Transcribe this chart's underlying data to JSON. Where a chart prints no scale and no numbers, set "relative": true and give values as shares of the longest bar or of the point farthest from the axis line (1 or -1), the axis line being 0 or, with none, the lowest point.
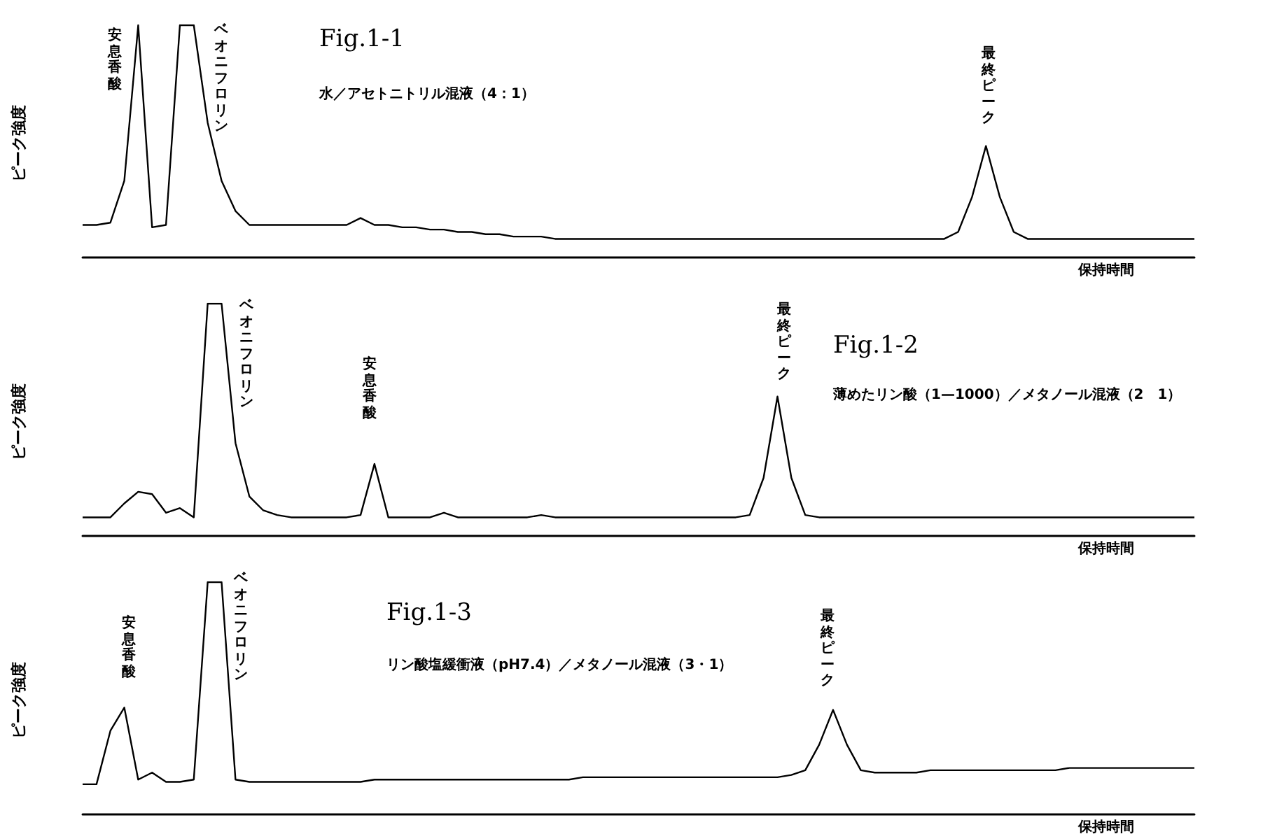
{
  "chart_data": [
    {
      "type": "line",
      "title": "Fig.1-1",
      "subtitle": "水／アセトニトリル混液（4：1）",
      "xlabel": "保持時間",
      "ylabel": "ピーク強度",
      "relative": true,
      "annotations": [
        "安息香酸",
        "ベオニフロリン",
        "最終ピーク"
      ],
      "categories": [
        null,
        null,
        null,
        null,
        null,
        null,
        null,
        null,
        null,
        null,
        null,
        null,
        null,
        null,
        null,
        null,
        null,
        null,
        null,
        null,
        null,
        null,
        null,
        null,
        null,
        null,
        null,
        null,
        null,
        null,
        null,
        null,
        null,
        null,
        null,
        null,
        null,
        null,
        null,
        null,
        null,
        null,
        null,
        null,
        null,
        null,
        null,
        null,
        null,
        null,
        null,
        null,
        null,
        null,
        null,
        null,
        null,
        null,
        null,
        null,
        null,
        null,
        null,
        null,
        null,
        null,
        null,
        null,
        null,
        null,
        null,
        null,
        null,
        null,
        null,
        null,
        null,
        null,
        null,
        null,
        null
      ],
      "series": [
        {
          "color": "#000000",
          "values": [
            0.14,
            0.14,
            0.15,
            0.33,
            1,
            0.13,
            0.14,
            1,
            1,
            0.58,
            0.33,
            0.2,
            0.14,
            0.14,
            0.14,
            0.14,
            0.14,
            0.14,
            0.14,
            0.14,
            0.17,
            0.14,
            0.14,
            0.13,
            0.13,
            0.12,
            0.12,
            0.11,
            0.11,
            0.1,
            0.1,
            0.09,
            0.09,
            0.09,
            0.08,
            0.08,
            0.08,
            0.08,
            0.08,
            0.08,
            0.08,
            0.08,
            0.08,
            0.08,
            0.08,
            0.08,
            0.08,
            0.08,
            0.08,
            0.08,
            0.08,
            0.08,
            0.08,
            0.08,
            0.08,
            0.08,
            0.08,
            0.08,
            0.08,
            0.08,
            0.08,
            0.08,
            0.08,
            0.11,
            0.26,
            0.48,
            0.26,
            0.11,
            0.08,
            0.08,
            0.08,
            0.08,
            0.08,
            0.08,
            0.08,
            0.08,
            0.08,
            0.08,
            0.08,
            0.08,
            0.08
          ]
        }
      ]
    },
    {
      "type": "line",
      "title": "Fig.1-2",
      "subtitle": "薄めたリン酸（1—1000）／メタノール混液（2　1）",
      "xlabel": "保持時間",
      "ylabel": "ピーク強度",
      "relative": true,
      "annotations": [
        "ベオニフロリン",
        "安息香酸",
        "最終ピーク"
      ],
      "categories": [
        null,
        null,
        null,
        null,
        null,
        null,
        null,
        null,
        null,
        null,
        null,
        null,
        null,
        null,
        null,
        null,
        null,
        null,
        null,
        null,
        null,
        null,
        null,
        null,
        null,
        null,
        null,
        null,
        null,
        null,
        null,
        null,
        null,
        null,
        null,
        null,
        null,
        null,
        null,
        null,
        null,
        null,
        null,
        null,
        null,
        null,
        null,
        null,
        null,
        null,
        null,
        null,
        null,
        null,
        null,
        null,
        null,
        null,
        null,
        null,
        null,
        null,
        null,
        null,
        null,
        null,
        null,
        null,
        null,
        null,
        null,
        null,
        null,
        null,
        null,
        null,
        null,
        null,
        null,
        null,
        null
      ],
      "series": [
        {
          "color": "#000000",
          "values": [
            0.08,
            0.08,
            0.08,
            0.14,
            0.19,
            0.18,
            0.1,
            0.12,
            0.08,
            1,
            1,
            0.4,
            0.17,
            0.11,
            0.09,
            0.08,
            0.08,
            0.08,
            0.08,
            0.08,
            0.09,
            0.31,
            0.08,
            0.08,
            0.08,
            0.08,
            0.1,
            0.08,
            0.08,
            0.08,
            0.08,
            0.08,
            0.08,
            0.09,
            0.08,
            0.08,
            0.08,
            0.08,
            0.08,
            0.08,
            0.08,
            0.08,
            0.08,
            0.08,
            0.08,
            0.08,
            0.08,
            0.08,
            0.09,
            0.25,
            0.6,
            0.25,
            0.09,
            0.08,
            0.08,
            0.08,
            0.08,
            0.08,
            0.08,
            0.08,
            0.08,
            0.08,
            0.08,
            0.08,
            0.08,
            0.08,
            0.08,
            0.08,
            0.08,
            0.08,
            0.08,
            0.08,
            0.08,
            0.08,
            0.08,
            0.08,
            0.08,
            0.08,
            0.08,
            0.08,
            0.08
          ]
        }
      ]
    },
    {
      "type": "line",
      "title": "Fig.1-3",
      "subtitle": "リン酸塩緩衝液（pH7.4）／メタノール混液（3・1）",
      "xlabel": "保持時間",
      "ylabel": "ピーク強度",
      "relative": true,
      "annotations": [
        "安息香酸",
        "ベオニフロリン",
        "最終ピーク"
      ],
      "categories": [
        null,
        null,
        null,
        null,
        null,
        null,
        null,
        null,
        null,
        null,
        null,
        null,
        null,
        null,
        null,
        null,
        null,
        null,
        null,
        null,
        null,
        null,
        null,
        null,
        null,
        null,
        null,
        null,
        null,
        null,
        null,
        null,
        null,
        null,
        null,
        null,
        null,
        null,
        null,
        null,
        null,
        null,
        null,
        null,
        null,
        null,
        null,
        null,
        null,
        null,
        null,
        null,
        null,
        null,
        null,
        null,
        null,
        null,
        null,
        null,
        null,
        null,
        null,
        null,
        null,
        null,
        null,
        null,
        null,
        null,
        null,
        null,
        null,
        null,
        null,
        null,
        null,
        null,
        null,
        null,
        null
      ],
      "series": [
        {
          "color": "#000000",
          "values": [
            0.13,
            0.13,
            0.36,
            0.46,
            0.15,
            0.18,
            0.14,
            0.14,
            0.15,
            1,
            1,
            0.15,
            0.14,
            0.14,
            0.14,
            0.14,
            0.14,
            0.14,
            0.14,
            0.14,
            0.14,
            0.15,
            0.15,
            0.15,
            0.15,
            0.15,
            0.15,
            0.15,
            0.15,
            0.15,
            0.15,
            0.15,
            0.15,
            0.15,
            0.15,
            0.15,
            0.16,
            0.16,
            0.16,
            0.16,
            0.16,
            0.16,
            0.16,
            0.16,
            0.16,
            0.16,
            0.16,
            0.16,
            0.16,
            0.16,
            0.16,
            0.17,
            0.19,
            0.3,
            0.45,
            0.3,
            0.19,
            0.18,
            0.18,
            0.18,
            0.18,
            0.19,
            0.19,
            0.19,
            0.19,
            0.19,
            0.19,
            0.19,
            0.19,
            0.19,
            0.19,
            0.2,
            0.2,
            0.2,
            0.2,
            0.2,
            0.2,
            0.2,
            0.2,
            0.2,
            0.2
          ]
        }
      ]
    }
  ]
}
